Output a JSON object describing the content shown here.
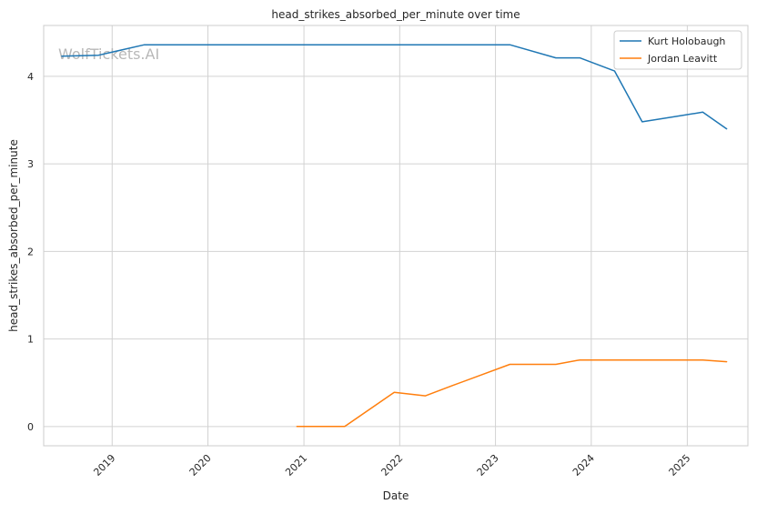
{
  "chart_data": {
    "type": "line",
    "title": "head_strikes_absorbed_per_minute over time",
    "xlabel": "Date",
    "ylabel": "head_strikes_absorbed_per_minute",
    "watermark": "WolfTickets.AI",
    "xlim": [
      "2018-04-15",
      "2025-08-20"
    ],
    "ylim": [
      -0.22,
      4.58
    ],
    "x_ticks": [
      "2019",
      "2020",
      "2021",
      "2022",
      "2023",
      "2024",
      "2025"
    ],
    "y_ticks": [
      "0",
      "1",
      "2",
      "3",
      "4"
    ],
    "grid": true,
    "legend": "top-right",
    "series": [
      {
        "name": "Kurt Holobaugh",
        "color": "#1f77b4",
        "points": [
          [
            "2018-06-23",
            4.23
          ],
          [
            "2018-11-10",
            4.24
          ],
          [
            "2019-05-04",
            4.36
          ],
          [
            "2023-02-25",
            4.36
          ],
          [
            "2023-08-19",
            4.21
          ],
          [
            "2023-11-18",
            4.21
          ],
          [
            "2024-03-30",
            4.06
          ],
          [
            "2024-07-13",
            3.48
          ],
          [
            "2025-03-01",
            3.59
          ],
          [
            "2025-05-31",
            3.4
          ]
        ]
      },
      {
        "name": "Jordan Leavitt",
        "color": "#ff7f0e",
        "points": [
          [
            "2020-12-05",
            0.0
          ],
          [
            "2021-06-05",
            0.0
          ],
          [
            "2021-12-11",
            0.39
          ],
          [
            "2022-04-09",
            0.35
          ],
          [
            "2022-07-23",
            0.47
          ],
          [
            "2023-02-25",
            0.71
          ],
          [
            "2023-08-19",
            0.71
          ],
          [
            "2023-11-18",
            0.76
          ],
          [
            "2025-03-01",
            0.76
          ],
          [
            "2025-05-31",
            0.74
          ]
        ]
      }
    ]
  }
}
